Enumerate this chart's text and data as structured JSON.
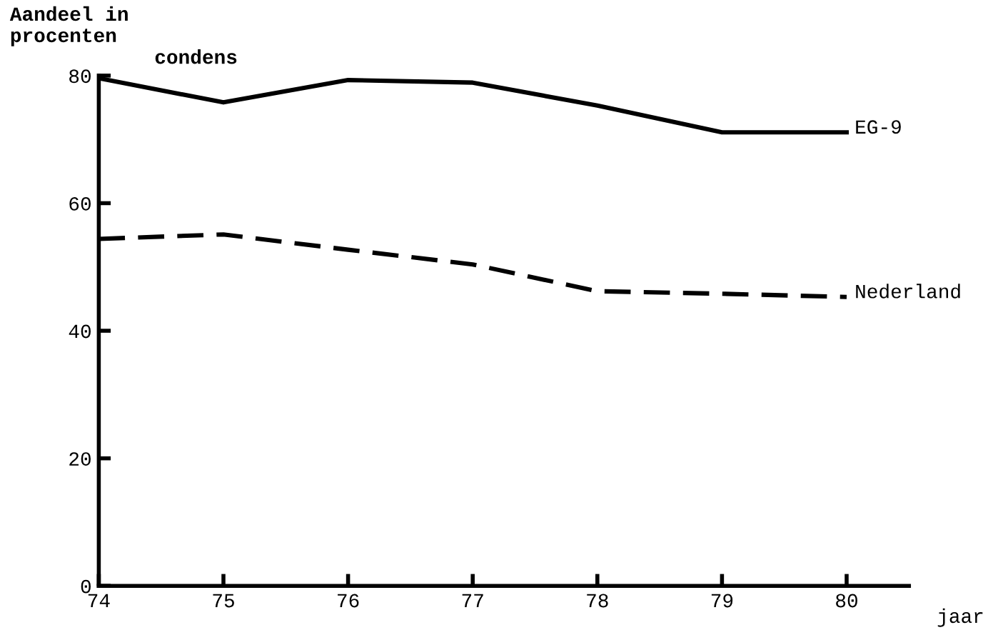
{
  "chart_data": {
    "type": "line",
    "title": "condens",
    "ylabel": "Aandeel in\nprocenten",
    "xlabel": "jaar",
    "x": [
      74,
      75,
      76,
      77,
      78,
      79,
      80
    ],
    "series": [
      {
        "name": "EG-9",
        "color": "#000000",
        "line_style": "solid",
        "values": [
          79.6,
          75.8,
          79.3,
          78.9,
          75.3,
          71.1,
          71.1
        ]
      },
      {
        "name": "Nederland",
        "color": "#000000",
        "line_style": "dashed",
        "values": [
          54.4,
          55.1,
          52.7,
          50.4,
          46.2,
          45.8,
          45.3
        ]
      }
    ],
    "xlim": [
      74,
      80.5
    ],
    "ylim": [
      0,
      80
    ],
    "xticks": [
      74,
      75,
      76,
      77,
      78,
      79,
      80
    ],
    "yticks": [
      0,
      20,
      40,
      60,
      80
    ],
    "grid": false,
    "legend": false,
    "marker": "none"
  }
}
